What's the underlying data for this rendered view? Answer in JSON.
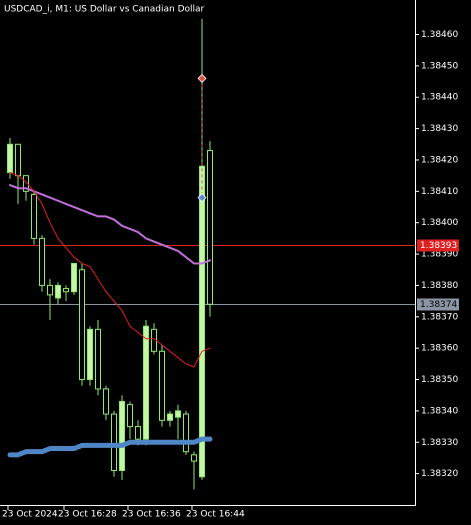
{
  "chart_data": {
    "type": "candlestick",
    "title": "USDCAD_i, M1:  US Dollar vs Canadian Dollar",
    "categories": [
      "23 Oct 2024",
      null,
      null,
      null,
      null,
      null,
      null,
      "23 Oct 16:28",
      null,
      null,
      null,
      null,
      null,
      null,
      null,
      "23 Oct 16:36",
      null,
      null,
      null,
      null,
      null,
      null,
      null,
      "23 Oct 16:44",
      null,
      null
    ],
    "open": [
      1.38416,
      1.38425,
      1.38415,
      1.38409,
      1.38395,
      1.3838,
      1.38376,
      1.38379,
      1.38378,
      1.38385,
      1.3835,
      1.38366,
      1.38347,
      1.38339,
      1.38321,
      1.38342,
      1.38335,
      1.38331,
      1.38366,
      1.38359,
      1.38337,
      1.38338,
      1.38339,
      1.38326,
      1.38319,
      1.38423
    ],
    "high": [
      1.38427,
      1.38425,
      1.38415,
      1.3841,
      1.38396,
      1.38382,
      1.38381,
      1.3838,
      1.38387,
      1.38387,
      1.38367,
      1.38369,
      1.38348,
      1.3834,
      1.38345,
      1.38343,
      1.38337,
      1.38369,
      1.38368,
      1.38361,
      1.3834,
      1.38342,
      1.3834,
      1.38327,
      1.38465,
      1.38426
    ],
    "low": [
      1.38414,
      1.38406,
      1.38407,
      1.38393,
      1.38378,
      1.38369,
      1.38374,
      1.38375,
      1.38377,
      1.38348,
      1.38348,
      1.38345,
      1.38337,
      1.38319,
      1.38318,
      1.38331,
      1.38329,
      1.38329,
      1.38358,
      1.38335,
      1.38335,
      1.38331,
      1.38326,
      1.38315,
      1.38318,
      1.3837
    ],
    "close": [
      1.38425,
      1.38415,
      1.3841,
      1.38395,
      1.3838,
      1.38377,
      1.3838,
      1.38378,
      1.38387,
      1.3835,
      1.38366,
      1.38347,
      1.38339,
      1.38321,
      1.38343,
      1.38335,
      1.38331,
      1.38367,
      1.38359,
      1.38337,
      1.38339,
      1.3834,
      1.38327,
      1.38324,
      1.38418,
      1.38374
    ],
    "up_color": "#c4f7a4",
    "down_color": "#000000",
    "wick_color": "#8ee86a",
    "series": [
      {
        "color": "#c070d8",
        "width": 2,
        "values": [
          1.38412,
          1.38411,
          1.38411,
          1.3841,
          1.38409,
          1.38408,
          1.38407,
          1.38406,
          1.38405,
          1.38404,
          1.38403,
          1.38402,
          1.38402,
          1.38401,
          1.38399,
          1.38398,
          1.38397,
          1.38395,
          1.38394,
          1.38393,
          1.38392,
          1.38391,
          1.38389,
          1.38387,
          1.38387,
          1.38388
        ]
      },
      {
        "color": "#e02020",
        "width": 1,
        "values": [
          1.38416,
          1.38415,
          1.38413,
          1.3841,
          1.38406,
          1.384,
          1.38395,
          1.38392,
          1.38389,
          1.38387,
          1.38386,
          1.38382,
          1.38378,
          1.38375,
          1.38372,
          1.38367,
          1.38365,
          1.38363,
          1.38363,
          1.38361,
          1.38359,
          1.38357,
          1.38355,
          1.38354,
          1.38359,
          1.3836
        ]
      },
      {
        "color": "#4f86c6",
        "width": 5,
        "values": [
          1.38326,
          1.38326,
          1.38327,
          1.38327,
          1.38327,
          1.38328,
          1.38328,
          1.38328,
          1.38328,
          1.38329,
          1.38329,
          1.38329,
          1.38329,
          1.38329,
          1.38329,
          1.3833,
          1.3833,
          1.3833,
          1.3833,
          1.3833,
          1.3833,
          1.3833,
          1.3833,
          1.3833,
          1.38331,
          1.38331
        ]
      }
    ],
    "price_lines": [
      {
        "value": 1.38393,
        "color": "#e02020",
        "text_color": "#ffffff"
      },
      {
        "value": 1.38374,
        "color": "#8b95a5",
        "text_color": "#000000"
      }
    ],
    "markers": [
      {
        "candle": 24,
        "value": 1.38446,
        "color": "#e05040"
      },
      {
        "candle": 24,
        "value": 1.38408,
        "color": "#5a8ad0"
      }
    ],
    "ylim": [
      1.3831,
      1.38471
    ],
    "yticks": [
      {
        "value": 1.3846,
        "label": "1.38460"
      },
      {
        "value": 1.3845,
        "label": "1.38450"
      },
      {
        "value": 1.3844,
        "label": "1.38440"
      },
      {
        "value": 1.3843,
        "label": "1.38430"
      },
      {
        "value": 1.3842,
        "label": "1.38420"
      },
      {
        "value": 1.3841,
        "label": "1.38410"
      },
      {
        "value": 1.384,
        "label": "1.38400"
      },
      {
        "value": 1.3839,
        "label": "1.38390"
      },
      {
        "value": 1.3838,
        "label": "1.38380"
      },
      {
        "value": 1.3837,
        "label": "1.38370"
      },
      {
        "value": 1.3836,
        "label": "1.38360"
      },
      {
        "value": 1.3835,
        "label": "1.38350"
      },
      {
        "value": 1.3834,
        "label": "1.38340"
      },
      {
        "value": 1.3833,
        "label": "1.38330"
      },
      {
        "value": 1.3832,
        "label": "1.38320"
      }
    ],
    "grid": false
  }
}
